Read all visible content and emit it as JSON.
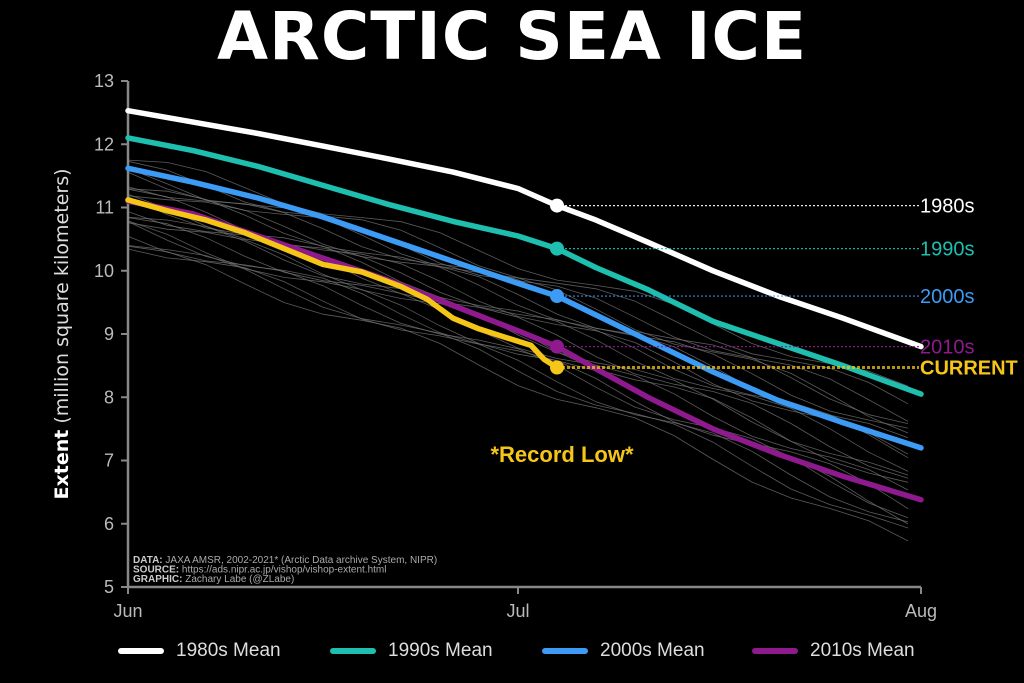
{
  "title": "ARCTIC SEA ICE",
  "chart_data": {
    "type": "line",
    "title": "ARCTIC SEA ICE",
    "ylabel_bold": "Extent",
    "ylabel_rest": " (million square kilometers)",
    "ylim": [
      5,
      13
    ],
    "yticks": [
      "5",
      "6",
      "7",
      "8",
      "9",
      "10",
      "11",
      "12",
      "13"
    ],
    "xlim": [
      0,
      61
    ],
    "xticks": [
      {
        "label": "Jun",
        "day": 0
      },
      {
        "label": "Jul",
        "day": 30
      },
      {
        "label": "Aug",
        "day": 61
      }
    ],
    "grid": false,
    "current_day": 33,
    "series": [
      {
        "name": "1980s Mean",
        "end_label": "1980s",
        "color": "#ffffff",
        "x": [
          0,
          5,
          10,
          15,
          20,
          25,
          30,
          33,
          36,
          40,
          45,
          50,
          55,
          61
        ],
        "y": [
          12.53,
          12.35,
          12.17,
          11.97,
          11.77,
          11.56,
          11.3,
          11.03,
          10.8,
          10.45,
          10.0,
          9.6,
          9.25,
          8.8
        ],
        "marker": 11.03
      },
      {
        "name": "1990s Mean",
        "end_label": "1990s",
        "color": "#1fbfb0",
        "x": [
          0,
          5,
          10,
          15,
          20,
          25,
          30,
          33,
          36,
          40,
          45,
          50,
          55,
          61
        ],
        "y": [
          12.1,
          11.9,
          11.65,
          11.35,
          11.05,
          10.78,
          10.55,
          10.35,
          10.05,
          9.7,
          9.2,
          8.85,
          8.5,
          8.05
        ],
        "marker": 10.35
      },
      {
        "name": "2000s Mean",
        "end_label": "2000s",
        "color": "#3c9cf5",
        "x": [
          0,
          5,
          10,
          15,
          20,
          25,
          30,
          33,
          36,
          40,
          45,
          50,
          55,
          61
        ],
        "y": [
          11.62,
          11.4,
          11.15,
          10.85,
          10.5,
          10.15,
          9.8,
          9.6,
          9.3,
          8.9,
          8.4,
          7.95,
          7.6,
          7.2
        ],
        "marker": 9.6
      },
      {
        "name": "2010s Mean",
        "end_label": "2010s",
        "color": "#8e1a8e",
        "x": [
          0,
          5,
          10,
          15,
          20,
          25,
          30,
          33,
          36,
          40,
          45,
          50,
          55,
          61
        ],
        "y": [
          11.1,
          10.9,
          10.55,
          10.2,
          9.85,
          9.45,
          9.05,
          8.8,
          8.45,
          8.0,
          7.5,
          7.1,
          6.75,
          6.38
        ],
        "marker": 8.8
      },
      {
        "name": "Current",
        "end_label": "CURRENT",
        "color": "#f5c518",
        "x": [
          0,
          3,
          6,
          9,
          12,
          15,
          18,
          21,
          23,
          25,
          27,
          29,
          31,
          32,
          33
        ],
        "y": [
          11.12,
          10.95,
          10.8,
          10.6,
          10.35,
          10.1,
          9.98,
          9.75,
          9.55,
          9.25,
          9.08,
          8.95,
          8.82,
          8.6,
          8.47
        ],
        "marker": 8.47
      }
    ],
    "annotation": "*Record Low*",
    "source_lines": [
      {
        "bold": "DATA:",
        "text": " JAXA AMSR, 2002-2021* (Arctic Data archive System, NIPR)"
      },
      {
        "bold": "SOURCE:",
        "text": " https://ads.nipr.ac.jp/vishop/vishop-extent.html"
      },
      {
        "bold": "GRAPHIC:",
        "text": " Zachary Labe (@ZLabe)"
      }
    ]
  },
  "legend": {
    "items": [
      {
        "label": "1980s Mean",
        "color": "#ffffff"
      },
      {
        "label": "1990s Mean",
        "color": "#1fbfb0"
      },
      {
        "label": "2000s Mean",
        "color": "#3c9cf5"
      },
      {
        "label": "2010s Mean",
        "color": "#8e1a8e"
      }
    ]
  }
}
